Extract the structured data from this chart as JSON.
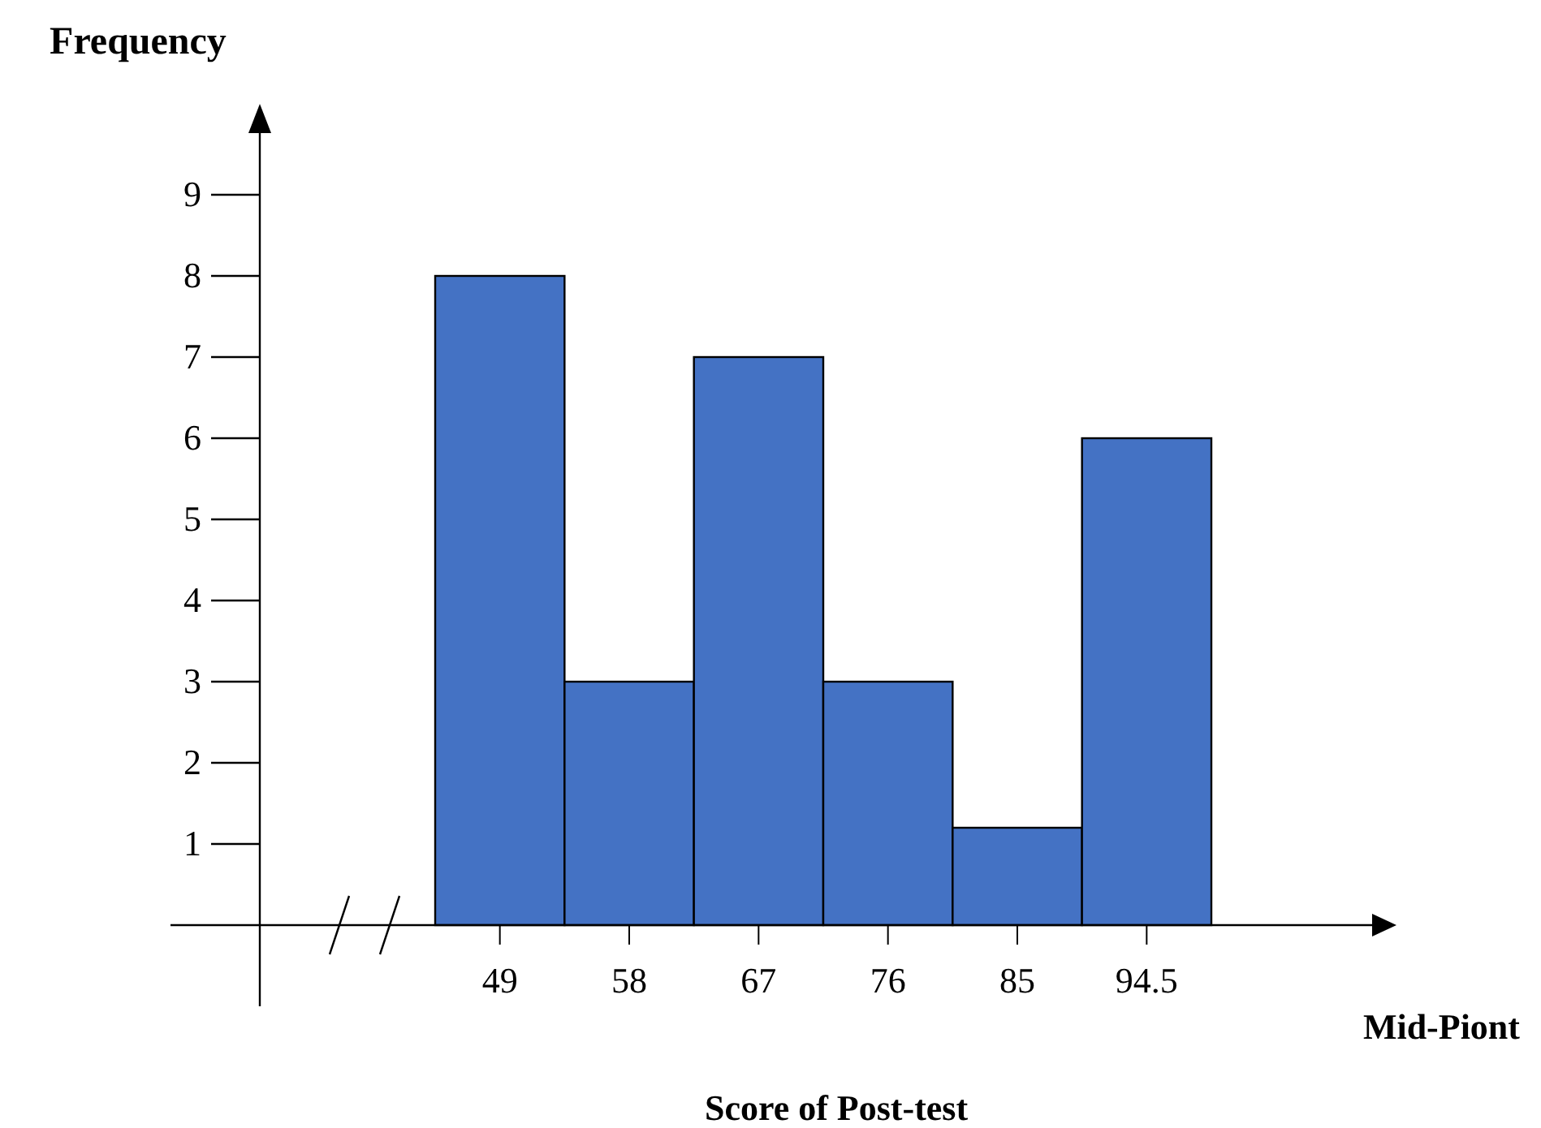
{
  "chart_data": {
    "type": "bar",
    "xlabel": "Score of Post-test",
    "ylabel": "Frequency",
    "categories": [
      "49",
      "58",
      "67",
      "76",
      "85",
      "94.5"
    ],
    "values": [
      8,
      3,
      7,
      3,
      1.2,
      6
    ],
    "color": "#4472c4",
    "ylim": [
      0,
      10
    ],
    "yticks": [
      1,
      2,
      3,
      4,
      5,
      6,
      7,
      8,
      9
    ],
    "grid": false,
    "annotations": [
      "Mid-Piont"
    ]
  }
}
